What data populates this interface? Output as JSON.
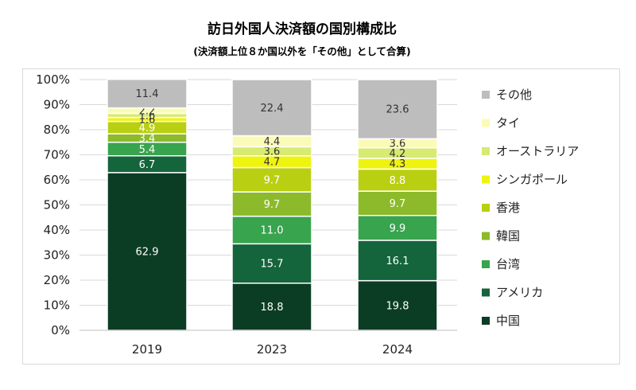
{
  "title": "訪日外国人決済額の国別構成比",
  "subtitle": "(決済額上位８か国以外を「その他」として合算)",
  "chart_data": {
    "type": "bar",
    "stacked": true,
    "categories": [
      "2019",
      "2023",
      "2024"
    ],
    "ylim": [
      0,
      100
    ],
    "yticks": [
      "0%",
      "10%",
      "20%",
      "30%",
      "40%",
      "50%",
      "60%",
      "70%",
      "80%",
      "90%",
      "100%"
    ],
    "grid": true,
    "legend_position": "right",
    "series": [
      {
        "name": "中国",
        "color": "#0b3d24",
        "values": [
          62.9,
          18.8,
          19.8
        ],
        "label_color": "#ffffff"
      },
      {
        "name": "アメリカ",
        "color": "#14643c",
        "values": [
          6.7,
          15.7,
          16.1
        ],
        "label_color": "#ffffff"
      },
      {
        "name": "台湾",
        "color": "#38a44e",
        "values": [
          5.4,
          11.0,
          9.9
        ],
        "label_color": "#ffffff"
      },
      {
        "name": "韓国",
        "color": "#8cba2a",
        "values": [
          3.4,
          9.7,
          9.7
        ],
        "label_color": "#ffffff"
      },
      {
        "name": "香港",
        "color": "#b9cf12",
        "values": [
          4.9,
          9.7,
          8.8
        ],
        "label_color": "#ffffff"
      },
      {
        "name": "シンガポール",
        "color": "#eef40e",
        "values": [
          1.6,
          4.7,
          4.3
        ],
        "label_color": "#333333"
      },
      {
        "name": "オーストラリア",
        "color": "#d7ea72",
        "values": [
          1.6,
          3.6,
          4.2
        ],
        "label_color": "#333333"
      },
      {
        "name": "タイ",
        "color": "#fbfbb8",
        "values": [
          2.2,
          4.4,
          3.6
        ],
        "label_color": "#333333"
      },
      {
        "name": "その他",
        "color": "#bdbdbd",
        "values": [
          11.4,
          22.4,
          23.6
        ],
        "label_color": "#333333"
      }
    ],
    "data_labels": [
      [
        "62.9",
        "18.8",
        "19.8"
      ],
      [
        "6.7",
        "15.7",
        "16.1"
      ],
      [
        "5.4",
        "11.0",
        "9.9"
      ],
      [
        "3.4",
        "9.7",
        "9.7"
      ],
      [
        "4.9",
        "9.7",
        "8.8"
      ],
      [
        "1.6",
        "4.7",
        "4.3"
      ],
      [
        "1.6",
        "3.6",
        "4.2"
      ],
      [
        "2.2",
        "4.4",
        "3.6"
      ],
      [
        "11.4",
        "22.4",
        "23.6"
      ]
    ]
  }
}
